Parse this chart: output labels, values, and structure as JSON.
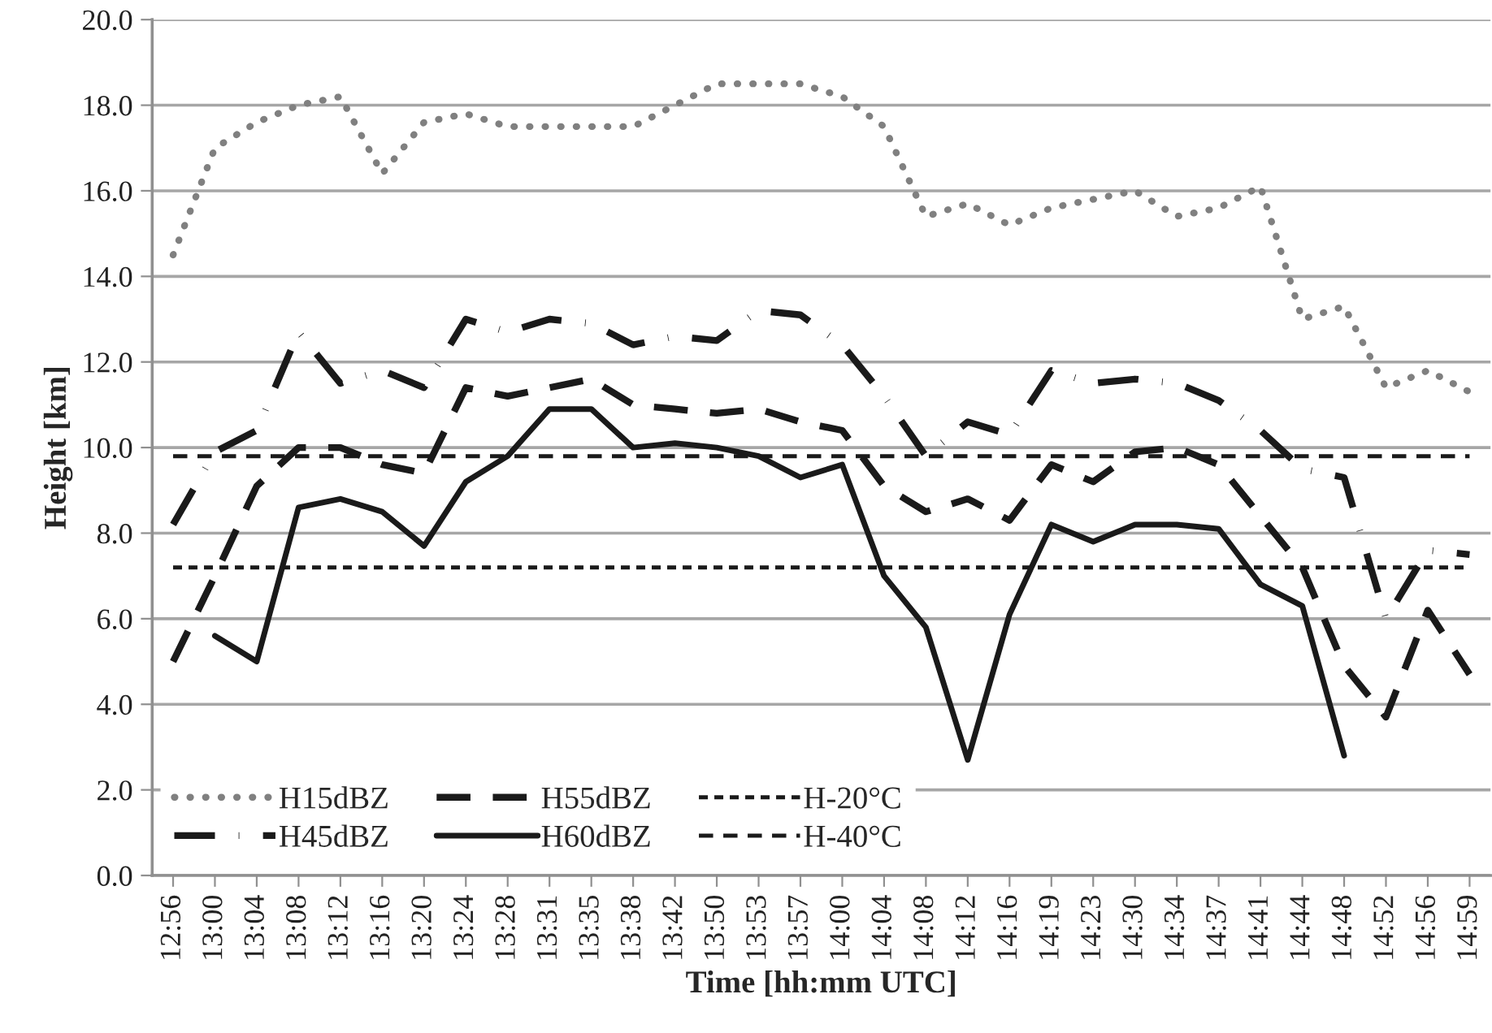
{
  "chart_data": {
    "type": "line",
    "xlabel": "Time [hh:mm UTC]",
    "ylabel": "Height [km]",
    "categories": [
      "12:56",
      "13:00",
      "13:04",
      "13:08",
      "13:12",
      "13:16",
      "13:20",
      "13:24",
      "13:28",
      "13:31",
      "13:35",
      "13:38",
      "13:42",
      "13:50",
      "13:53",
      "13:57",
      "14:00",
      "14:04",
      "14:08",
      "14:12",
      "14:16",
      "14:19",
      "14:23",
      "14:30",
      "14:34",
      "14:37",
      "14:41",
      "14:44",
      "14:48",
      "14:52",
      "14:56",
      "14:59"
    ],
    "series": [
      {
        "name": "H15dBZ",
        "color": "#808080",
        "line_style": "dotted",
        "values": [
          14.5,
          17.0,
          17.6,
          18.0,
          18.2,
          16.4,
          17.6,
          17.8,
          17.5,
          17.5,
          17.5,
          17.5,
          18.0,
          18.5,
          18.5,
          18.5,
          18.2,
          17.5,
          15.4,
          15.7,
          15.2,
          15.6,
          15.8,
          16.0,
          15.4,
          15.6,
          16.1,
          13.0,
          13.3,
          11.4,
          11.8,
          11.3
        ]
      },
      {
        "name": "H45dBZ",
        "color": "#1a1a1a",
        "line_style": "dashdot",
        "values": [
          8.2,
          9.9,
          10.4,
          12.7,
          11.5,
          11.8,
          11.4,
          13.0,
          12.7,
          13.0,
          12.9,
          12.4,
          12.6,
          12.5,
          13.2,
          13.1,
          12.4,
          11.2,
          9.8,
          10.6,
          10.3,
          11.8,
          11.5,
          11.6,
          11.5,
          11.1,
          10.4,
          9.5,
          9.3,
          6.0,
          7.6,
          7.5
        ]
      },
      {
        "name": "H55dBZ",
        "color": "#1a1a1a",
        "line_style": "dashed",
        "values": [
          5.0,
          7.0,
          9.1,
          10.0,
          10.0,
          9.6,
          9.4,
          11.4,
          11.2,
          11.4,
          11.6,
          11.0,
          10.9,
          10.8,
          10.9,
          10.6,
          10.4,
          9.1,
          8.5,
          8.8,
          8.3,
          9.6,
          9.2,
          9.9,
          10.0,
          9.6,
          8.4,
          7.2,
          4.9,
          3.7,
          6.2,
          4.7
        ]
      },
      {
        "name": "H60dBZ",
        "color": "#1a1a1a",
        "line_style": "solid",
        "values": [
          null,
          5.6,
          5.0,
          8.6,
          8.8,
          8.5,
          7.7,
          9.2,
          9.8,
          10.9,
          10.9,
          10.0,
          10.1,
          10.0,
          9.8,
          9.3,
          9.6,
          7.0,
          5.8,
          2.7,
          6.1,
          8.2,
          7.8,
          8.2,
          8.2,
          8.1,
          6.8,
          6.3,
          2.8,
          null,
          null,
          null
        ]
      },
      {
        "name": "H-20°C",
        "color": "#1a1a1a",
        "line_style": "dashed",
        "values": [
          7.2,
          7.2,
          7.2,
          7.2,
          7.2,
          7.2,
          7.2,
          7.2,
          7.2,
          7.2,
          7.2,
          7.2,
          7.2,
          7.2,
          7.2,
          7.2,
          7.2,
          7.2,
          7.2,
          7.2,
          7.2,
          7.2,
          7.2,
          7.2,
          7.2,
          7.2,
          7.2,
          7.2,
          7.2,
          7.2,
          7.2,
          7.2
        ]
      },
      {
        "name": "H-40°C",
        "color": "#1a1a1a",
        "line_style": "dashed",
        "values": [
          9.8,
          9.8,
          9.8,
          9.8,
          9.8,
          9.8,
          9.8,
          9.8,
          9.8,
          9.8,
          9.8,
          9.8,
          9.8,
          9.8,
          9.8,
          9.8,
          9.8,
          9.8,
          9.8,
          9.8,
          9.8,
          9.8,
          9.8,
          9.8,
          9.8,
          9.8,
          9.8,
          9.8,
          9.8,
          9.8,
          9.8,
          9.8
        ]
      }
    ],
    "ylim": [
      0,
      20
    ],
    "yticks": [
      {
        "value": 0,
        "label": "0.0"
      },
      {
        "value": 2,
        "label": "2.0"
      },
      {
        "value": 4,
        "label": "4.0"
      },
      {
        "value": 6,
        "label": "6.0"
      },
      {
        "value": 8,
        "label": "8.0"
      },
      {
        "value": 10,
        "label": "10.0"
      },
      {
        "value": 12,
        "label": "12.0"
      },
      {
        "value": 14,
        "label": "14.0"
      },
      {
        "value": 16,
        "label": "16.0"
      },
      {
        "value": 18,
        "label": "18.0"
      },
      {
        "value": 20,
        "label": "20.0"
      }
    ],
    "grid": "y",
    "legend": "bottom left"
  }
}
